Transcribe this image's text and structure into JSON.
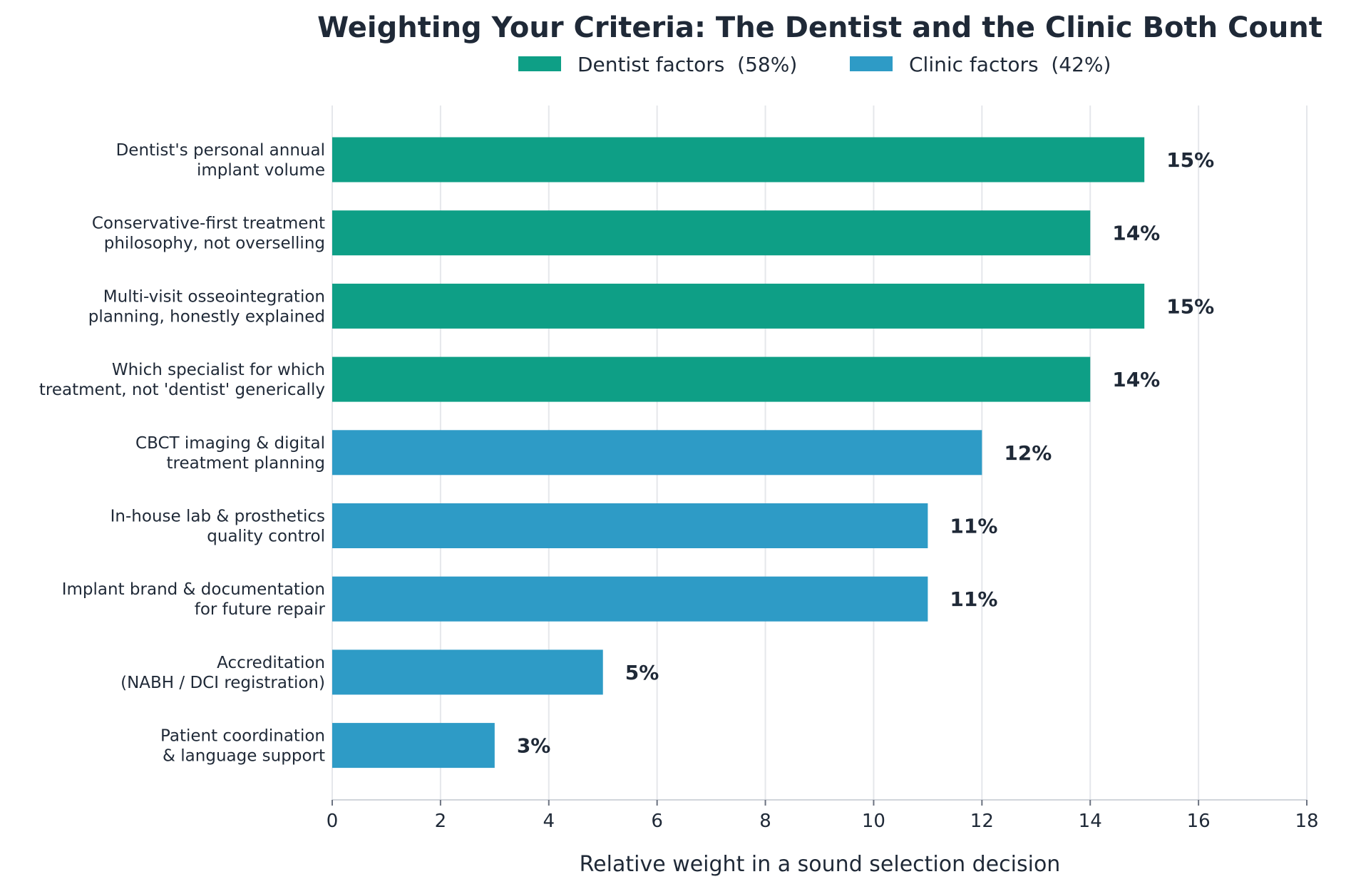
{
  "chart_data": {
    "type": "bar",
    "orientation": "horizontal",
    "title": "Weighting Your Criteria: The Dentist and the Clinic Both Count",
    "xlabel": "Relative weight in a sound selection decision",
    "ylabel": "",
    "xlim": [
      0,
      18
    ],
    "xticks": [
      0,
      2,
      4,
      6,
      8,
      10,
      12,
      14,
      16,
      18
    ],
    "grid": "vertical",
    "legend_placement": "top-center",
    "series": [
      {
        "name": "Dentist factors  (58%)",
        "color": "#0e9f86"
      },
      {
        "name": "Clinic factors  (42%)",
        "color": "#2e9bc6"
      }
    ],
    "bars": [
      {
        "label": [
          "Dentist's personal annual",
          "implant volume"
        ],
        "value": 15,
        "value_label": "15%",
        "series": 0
      },
      {
        "label": [
          "Conservative-first treatment",
          "philosophy, not overselling"
        ],
        "value": 14,
        "value_label": "14%",
        "series": 0
      },
      {
        "label": [
          "Multi-visit osseointegration",
          "planning, honestly explained"
        ],
        "value": 15,
        "value_label": "15%",
        "series": 0
      },
      {
        "label": [
          "Which specialist for which",
          "treatment, not 'dentist' generically"
        ],
        "value": 14,
        "value_label": "14%",
        "series": 0
      },
      {
        "label": [
          "CBCT imaging & digital",
          "treatment planning"
        ],
        "value": 12,
        "value_label": "12%",
        "series": 1
      },
      {
        "label": [
          "In-house lab & prosthetics",
          "quality control"
        ],
        "value": 11,
        "value_label": "11%",
        "series": 1
      },
      {
        "label": [
          "Implant brand & documentation",
          "for future repair"
        ],
        "value": 11,
        "value_label": "11%",
        "series": 1
      },
      {
        "label": [
          "Accreditation",
          "(NABH / DCI registration)"
        ],
        "value": 5,
        "value_label": "5%",
        "series": 1
      },
      {
        "label": [
          "Patient coordination",
          "& language support"
        ],
        "value": 3,
        "value_label": "3%",
        "series": 1
      }
    ]
  }
}
